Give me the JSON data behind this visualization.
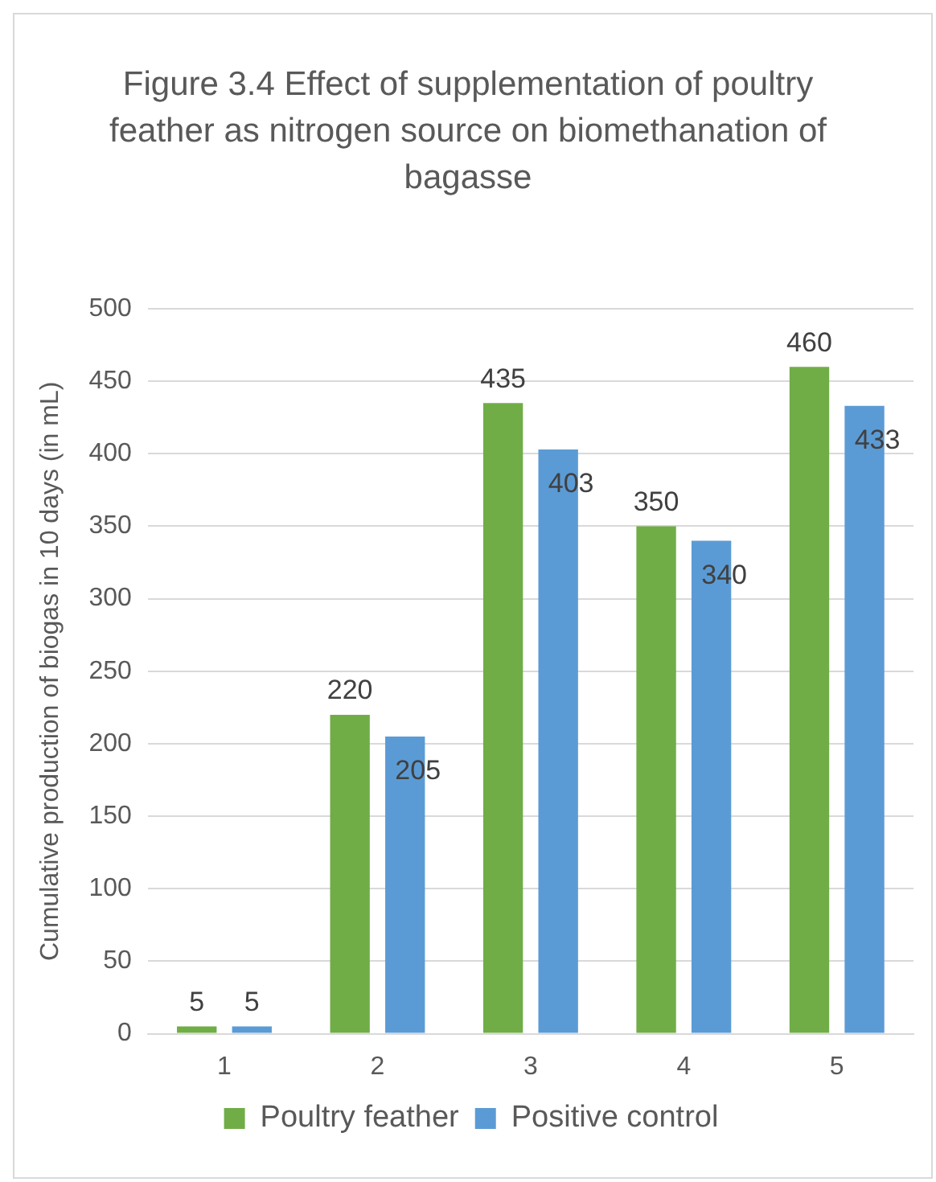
{
  "chart_data": {
    "type": "bar",
    "title": "Figure 3.4 Effect of supplementation of poultry feather as nitrogen source on biomethanation of bagasse",
    "ylabel": "Cumulative production of biogas in 10 days (in mL)",
    "categories": [
      "1",
      "2",
      "3",
      "4",
      "5"
    ],
    "series": [
      {
        "name": "Poultry feather",
        "color": "#70ad47",
        "values": [
          5,
          220,
          435,
          350,
          460
        ]
      },
      {
        "name": "Positive control",
        "color": "#5b9bd5",
        "values": [
          5,
          205,
          403,
          340,
          433
        ]
      }
    ],
    "ylim": [
      0,
      500
    ],
    "yticks": [
      0,
      50,
      100,
      150,
      200,
      250,
      300,
      350,
      400,
      450,
      500
    ],
    "grid": "y",
    "legend": "bottom",
    "data_labels": true
  }
}
